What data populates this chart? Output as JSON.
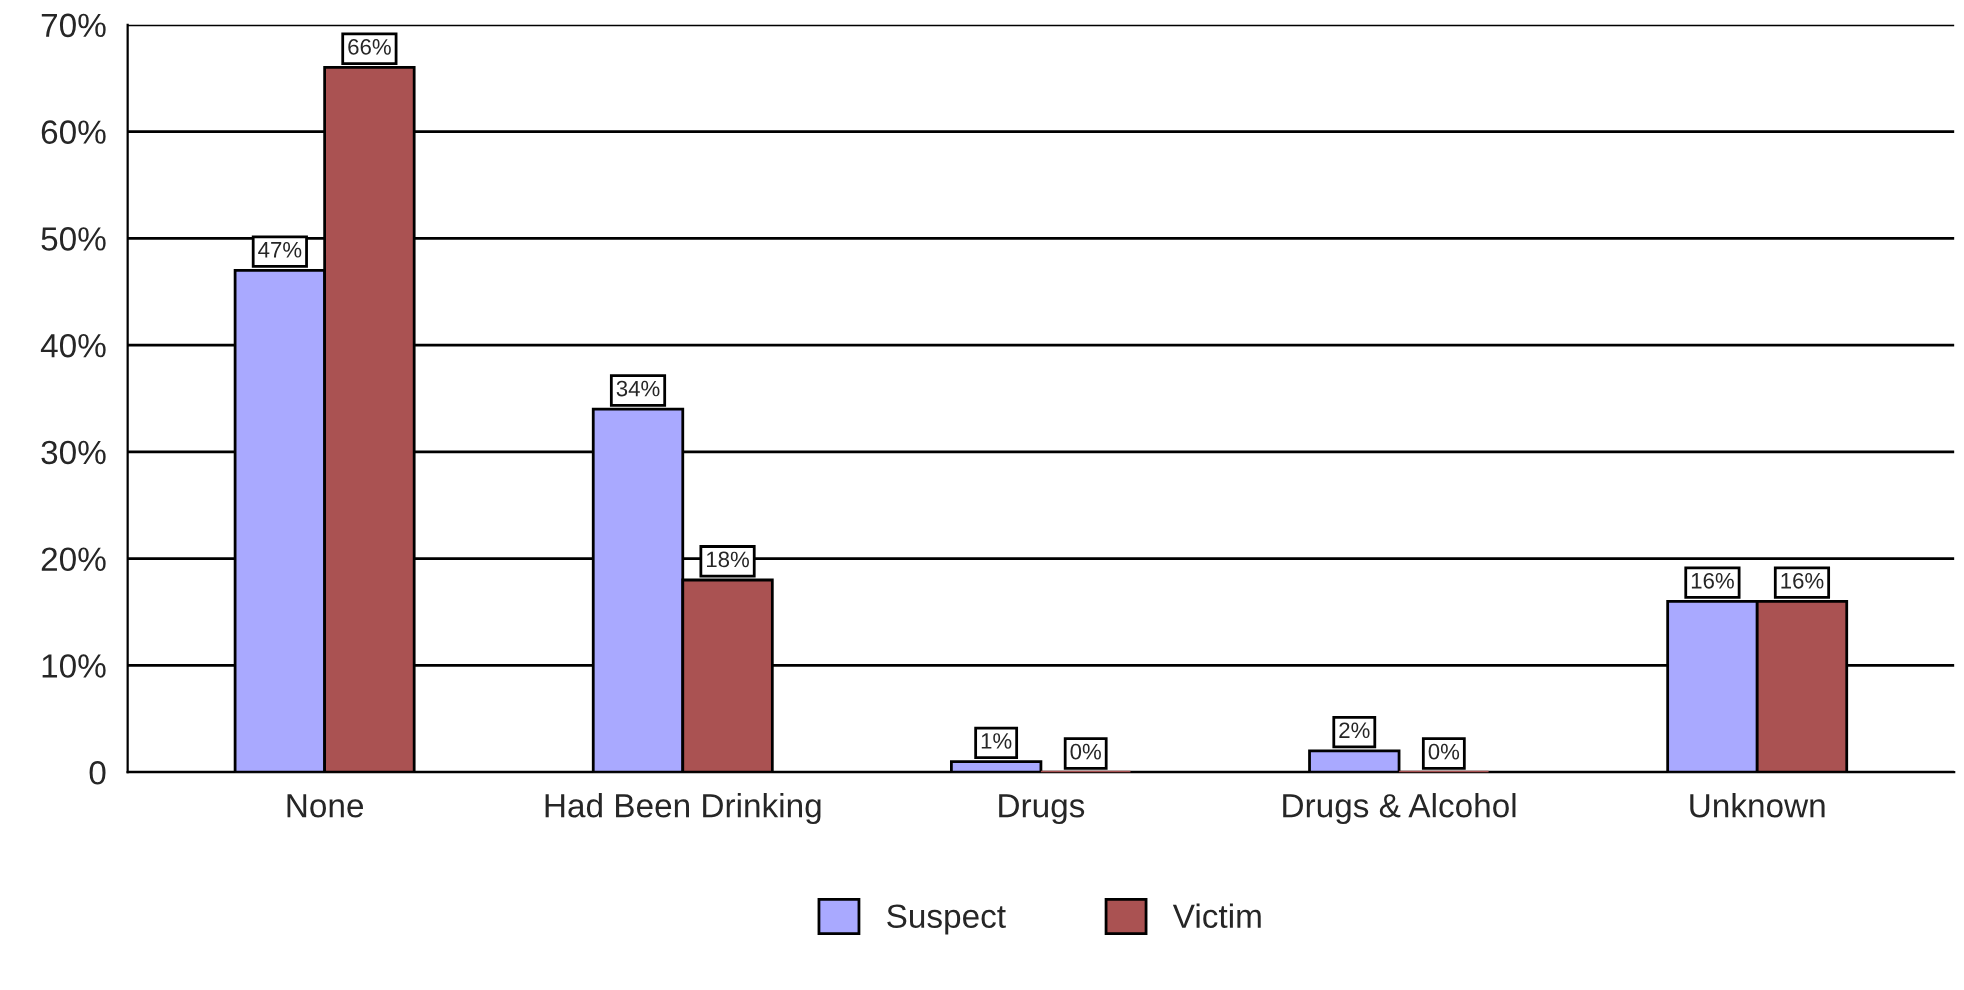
{
  "chart_data": {
    "type": "bar",
    "categories": [
      "None",
      "Had Been Drinking",
      "Drugs",
      "Drugs & Alcohol",
      "Unknown"
    ],
    "series": [
      {
        "name": "Suspect",
        "color": "#a9a9ff",
        "values": [
          47,
          34,
          1,
          2,
          16
        ],
        "value_labels": [
          "47%",
          "34%",
          "1%",
          "2%",
          "16%"
        ]
      },
      {
        "name": "Victim",
        "color": "#aa5252",
        "values": [
          66,
          18,
          0,
          0,
          16
        ],
        "value_labels": [
          "66%",
          "18%",
          "0%",
          "0%",
          "16%"
        ]
      }
    ],
    "ylim": [
      0,
      70
    ],
    "yticks": [
      0,
      {
        "value": 10,
        "label": "10%"
      },
      {
        "value": 20,
        "label": "20%"
      },
      {
        "value": 30,
        "label": "30%"
      },
      {
        "value": 40,
        "label": "40%"
      },
      {
        "value": 50,
        "label": "50%"
      },
      {
        "value": 60,
        "label": "60%"
      },
      {
        "value": 70,
        "label": "70%"
      }
    ],
    "grid": "y",
    "legend": "bottom"
  }
}
